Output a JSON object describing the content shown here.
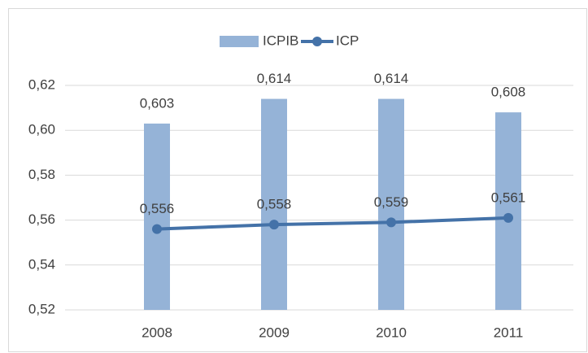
{
  "chart_data": {
    "type": "bar",
    "categories": [
      "2008",
      "2009",
      "2010",
      "2011"
    ],
    "series": [
      {
        "name": "ICPIB",
        "type": "bar",
        "color": "#95b3d7",
        "values": [
          0.603,
          0.614,
          0.614,
          0.608
        ],
        "value_labels": [
          "0,603",
          "0,614",
          "0,614",
          "0,608"
        ]
      },
      {
        "name": "ICP",
        "type": "line",
        "color": "#4472a8",
        "values": [
          0.556,
          0.558,
          0.559,
          0.561
        ],
        "value_labels": [
          "0,556",
          "0,558",
          "0,559",
          "0,561"
        ]
      }
    ],
    "ylim": [
      0.52,
      0.62
    ],
    "yticks": [
      {
        "value": 0.52,
        "label": "0,52"
      },
      {
        "value": 0.54,
        "label": "0,54"
      },
      {
        "value": 0.56,
        "label": "0,56"
      },
      {
        "value": 0.58,
        "label": "0,58"
      },
      {
        "value": 0.6,
        "label": "0,60"
      },
      {
        "value": 0.62,
        "label": "0,62"
      }
    ],
    "grid": true,
    "legend": "top"
  }
}
